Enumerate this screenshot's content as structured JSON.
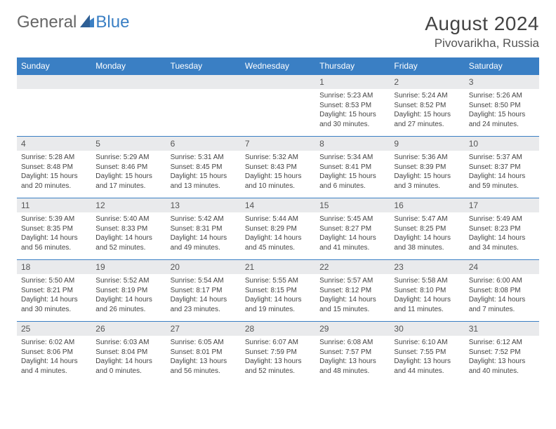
{
  "logo": {
    "part1": "General",
    "part2": "Blue"
  },
  "title": "August 2024",
  "location": "Pivovarikha, Russia",
  "colors": {
    "header_bg": "#3a7fc4",
    "header_text": "#ffffff",
    "daynum_bg": "#e9eaec",
    "border": "#3a7fc4",
    "text": "#444444",
    "background": "#ffffff"
  },
  "day_headers": [
    "Sunday",
    "Monday",
    "Tuesday",
    "Wednesday",
    "Thursday",
    "Friday",
    "Saturday"
  ],
  "weeks": [
    [
      {
        "n": "",
        "sr": "",
        "ss": "",
        "dl": ""
      },
      {
        "n": "",
        "sr": "",
        "ss": "",
        "dl": ""
      },
      {
        "n": "",
        "sr": "",
        "ss": "",
        "dl": ""
      },
      {
        "n": "",
        "sr": "",
        "ss": "",
        "dl": ""
      },
      {
        "n": "1",
        "sr": "Sunrise: 5:23 AM",
        "ss": "Sunset: 8:53 PM",
        "dl": "Daylight: 15 hours and 30 minutes."
      },
      {
        "n": "2",
        "sr": "Sunrise: 5:24 AM",
        "ss": "Sunset: 8:52 PM",
        "dl": "Daylight: 15 hours and 27 minutes."
      },
      {
        "n": "3",
        "sr": "Sunrise: 5:26 AM",
        "ss": "Sunset: 8:50 PM",
        "dl": "Daylight: 15 hours and 24 minutes."
      }
    ],
    [
      {
        "n": "4",
        "sr": "Sunrise: 5:28 AM",
        "ss": "Sunset: 8:48 PM",
        "dl": "Daylight: 15 hours and 20 minutes."
      },
      {
        "n": "5",
        "sr": "Sunrise: 5:29 AM",
        "ss": "Sunset: 8:46 PM",
        "dl": "Daylight: 15 hours and 17 minutes."
      },
      {
        "n": "6",
        "sr": "Sunrise: 5:31 AM",
        "ss": "Sunset: 8:45 PM",
        "dl": "Daylight: 15 hours and 13 minutes."
      },
      {
        "n": "7",
        "sr": "Sunrise: 5:32 AM",
        "ss": "Sunset: 8:43 PM",
        "dl": "Daylight: 15 hours and 10 minutes."
      },
      {
        "n": "8",
        "sr": "Sunrise: 5:34 AM",
        "ss": "Sunset: 8:41 PM",
        "dl": "Daylight: 15 hours and 6 minutes."
      },
      {
        "n": "9",
        "sr": "Sunrise: 5:36 AM",
        "ss": "Sunset: 8:39 PM",
        "dl": "Daylight: 15 hours and 3 minutes."
      },
      {
        "n": "10",
        "sr": "Sunrise: 5:37 AM",
        "ss": "Sunset: 8:37 PM",
        "dl": "Daylight: 14 hours and 59 minutes."
      }
    ],
    [
      {
        "n": "11",
        "sr": "Sunrise: 5:39 AM",
        "ss": "Sunset: 8:35 PM",
        "dl": "Daylight: 14 hours and 56 minutes."
      },
      {
        "n": "12",
        "sr": "Sunrise: 5:40 AM",
        "ss": "Sunset: 8:33 PM",
        "dl": "Daylight: 14 hours and 52 minutes."
      },
      {
        "n": "13",
        "sr": "Sunrise: 5:42 AM",
        "ss": "Sunset: 8:31 PM",
        "dl": "Daylight: 14 hours and 49 minutes."
      },
      {
        "n": "14",
        "sr": "Sunrise: 5:44 AM",
        "ss": "Sunset: 8:29 PM",
        "dl": "Daylight: 14 hours and 45 minutes."
      },
      {
        "n": "15",
        "sr": "Sunrise: 5:45 AM",
        "ss": "Sunset: 8:27 PM",
        "dl": "Daylight: 14 hours and 41 minutes."
      },
      {
        "n": "16",
        "sr": "Sunrise: 5:47 AM",
        "ss": "Sunset: 8:25 PM",
        "dl": "Daylight: 14 hours and 38 minutes."
      },
      {
        "n": "17",
        "sr": "Sunrise: 5:49 AM",
        "ss": "Sunset: 8:23 PM",
        "dl": "Daylight: 14 hours and 34 minutes."
      }
    ],
    [
      {
        "n": "18",
        "sr": "Sunrise: 5:50 AM",
        "ss": "Sunset: 8:21 PM",
        "dl": "Daylight: 14 hours and 30 minutes."
      },
      {
        "n": "19",
        "sr": "Sunrise: 5:52 AM",
        "ss": "Sunset: 8:19 PM",
        "dl": "Daylight: 14 hours and 26 minutes."
      },
      {
        "n": "20",
        "sr": "Sunrise: 5:54 AM",
        "ss": "Sunset: 8:17 PM",
        "dl": "Daylight: 14 hours and 23 minutes."
      },
      {
        "n": "21",
        "sr": "Sunrise: 5:55 AM",
        "ss": "Sunset: 8:15 PM",
        "dl": "Daylight: 14 hours and 19 minutes."
      },
      {
        "n": "22",
        "sr": "Sunrise: 5:57 AM",
        "ss": "Sunset: 8:12 PM",
        "dl": "Daylight: 14 hours and 15 minutes."
      },
      {
        "n": "23",
        "sr": "Sunrise: 5:58 AM",
        "ss": "Sunset: 8:10 PM",
        "dl": "Daylight: 14 hours and 11 minutes."
      },
      {
        "n": "24",
        "sr": "Sunrise: 6:00 AM",
        "ss": "Sunset: 8:08 PM",
        "dl": "Daylight: 14 hours and 7 minutes."
      }
    ],
    [
      {
        "n": "25",
        "sr": "Sunrise: 6:02 AM",
        "ss": "Sunset: 8:06 PM",
        "dl": "Daylight: 14 hours and 4 minutes."
      },
      {
        "n": "26",
        "sr": "Sunrise: 6:03 AM",
        "ss": "Sunset: 8:04 PM",
        "dl": "Daylight: 14 hours and 0 minutes."
      },
      {
        "n": "27",
        "sr": "Sunrise: 6:05 AM",
        "ss": "Sunset: 8:01 PM",
        "dl": "Daylight: 13 hours and 56 minutes."
      },
      {
        "n": "28",
        "sr": "Sunrise: 6:07 AM",
        "ss": "Sunset: 7:59 PM",
        "dl": "Daylight: 13 hours and 52 minutes."
      },
      {
        "n": "29",
        "sr": "Sunrise: 6:08 AM",
        "ss": "Sunset: 7:57 PM",
        "dl": "Daylight: 13 hours and 48 minutes."
      },
      {
        "n": "30",
        "sr": "Sunrise: 6:10 AM",
        "ss": "Sunset: 7:55 PM",
        "dl": "Daylight: 13 hours and 44 minutes."
      },
      {
        "n": "31",
        "sr": "Sunrise: 6:12 AM",
        "ss": "Sunset: 7:52 PM",
        "dl": "Daylight: 13 hours and 40 minutes."
      }
    ]
  ]
}
